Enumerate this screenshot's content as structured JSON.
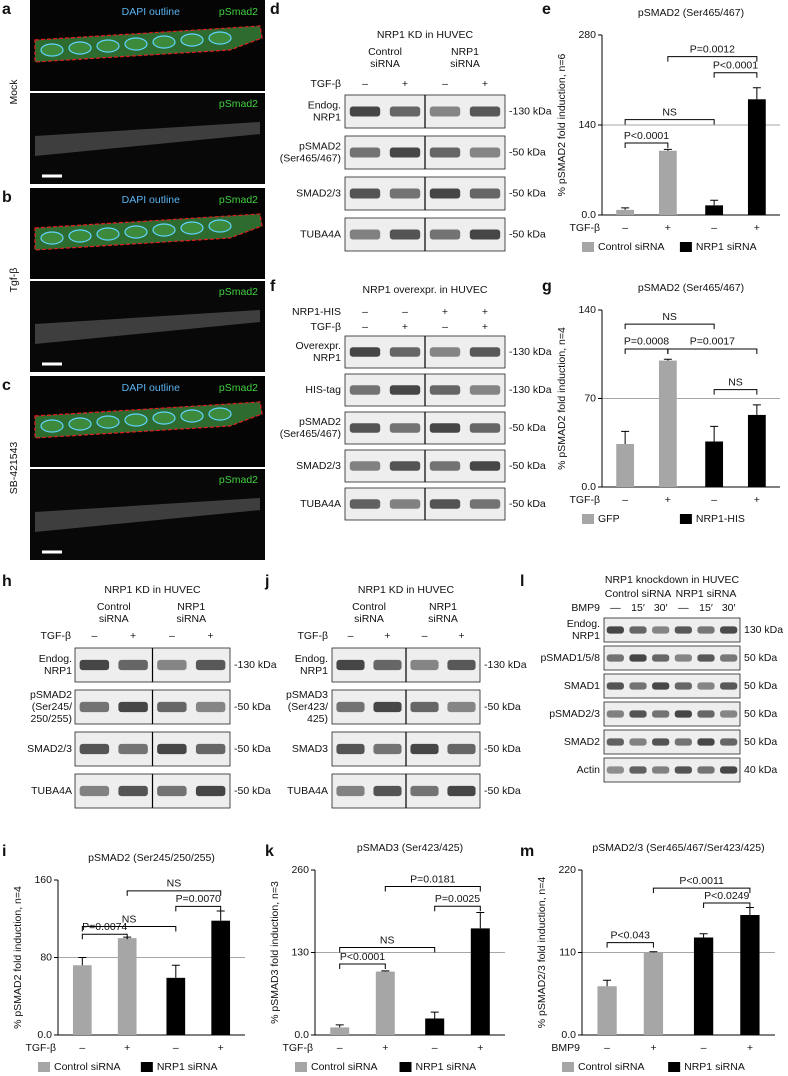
{
  "microscopy": [
    {
      "letter": "a",
      "condition": "Mock",
      "overlay_labels": [
        "DAPI outline",
        "pSmad2"
      ],
      "single_label": "pSmad2"
    },
    {
      "letter": "b",
      "condition": "Tgf-β",
      "overlay_labels": [
        "DAPI outline",
        "pSmad2"
      ],
      "single_label": "pSmad2"
    },
    {
      "letter": "c",
      "condition": "SB-421543",
      "overlay_labels": [
        "DAPI outline",
        "pSmad2"
      ],
      "single_label": "pSmad2"
    }
  ],
  "blots": [
    {
      "letter": "d",
      "title": "NRP1 KD in HUVEC",
      "groups": [
        [
          "Control",
          "siRNA"
        ],
        [
          "NRP1",
          "siRNA"
        ]
      ],
      "treatments": [
        {
          "label": "TGF-β",
          "signs": [
            "–",
            "+",
            "–",
            "+"
          ]
        }
      ],
      "rows": [
        {
          "label": [
            "Endog.",
            "NRP1"
          ],
          "size": "-130 kDa"
        },
        {
          "label": [
            "pSMAD2",
            "(Ser465/467)"
          ],
          "size": "-50 kDa"
        },
        {
          "label": [
            "SMAD2/3"
          ],
          "size": "-50 kDa"
        },
        {
          "label": [
            "TUBA4A"
          ],
          "size": "-50 kDa"
        }
      ]
    },
    {
      "letter": "f",
      "title": "NRP1 overexpr. in HUVEC",
      "groups": [],
      "treatments": [
        {
          "label": "NRP1-HIS",
          "signs": [
            "–",
            "–",
            "+",
            "+"
          ]
        },
        {
          "label": "TGF-β",
          "signs": [
            "–",
            "+",
            "–",
            "+"
          ]
        }
      ],
      "rows": [
        {
          "label": [
            "Overexpr.",
            "NRP1"
          ],
          "size": "-130 kDa"
        },
        {
          "label": [
            "HIS-tag"
          ],
          "size": "-130 kDa"
        },
        {
          "label": [
            "pSMAD2",
            "(Ser465/467)"
          ],
          "size": "-50 kDa"
        },
        {
          "label": [
            "SMAD2/3"
          ],
          "size": "-50 kDa"
        },
        {
          "label": [
            "TUBA4A"
          ],
          "size": "-50 kDa"
        }
      ]
    },
    {
      "letter": "h",
      "title": "NRP1 KD in HUVEC",
      "groups": [
        [
          "Control",
          "siRNA"
        ],
        [
          "NRP1",
          "siRNA"
        ]
      ],
      "treatments": [
        {
          "label": "TGF-β",
          "signs": [
            "–",
            "+",
            "–",
            "+"
          ]
        }
      ],
      "rows": [
        {
          "label": [
            "Endog.",
            "NRP1"
          ],
          "size": "-130 kDa"
        },
        {
          "label": [
            "pSMAD2",
            "(Ser245/",
            "250/255)"
          ],
          "size": "-50 kDa"
        },
        {
          "label": [
            "SMAD2/3"
          ],
          "size": "-50 kDa"
        },
        {
          "label": [
            "TUBA4A"
          ],
          "size": "-50 kDa"
        }
      ]
    },
    {
      "letter": "j",
      "title": "NRP1 KD in HUVEC",
      "groups": [
        [
          "Control",
          "siRNA"
        ],
        [
          "NRP1",
          "siRNA"
        ]
      ],
      "treatments": [
        {
          "label": "TGF-β",
          "signs": [
            "–",
            "+",
            "–",
            "+"
          ]
        }
      ],
      "rows": [
        {
          "label": [
            "Endog.",
            "NRP1"
          ],
          "size": "-130 kDa"
        },
        {
          "label": [
            "pSMAD3",
            "(Ser423/",
            "425)"
          ],
          "size": "-50 kDa"
        },
        {
          "label": [
            "SMAD3"
          ],
          "size": "-50 kDa"
        },
        {
          "label": [
            "TUBA4A"
          ],
          "size": "-50 kDa"
        }
      ]
    },
    {
      "letter": "l",
      "title": "NRP1 knockdown in HUVEC",
      "groups": [
        [
          "Control siRNA"
        ],
        [
          "NRP1 siRNA"
        ]
      ],
      "treatments": [
        {
          "label": "BMP9",
          "signs": [
            "—",
            "15′",
            "30′",
            "—",
            "15′",
            "30′"
          ]
        }
      ],
      "rows": [
        {
          "label": [
            "Endog.",
            "NRP1"
          ],
          "size": "130 kDa"
        },
        {
          "label": [
            "pSMAD1/5/8"
          ],
          "size": "50 kDa"
        },
        {
          "label": [
            "SMAD1"
          ],
          "size": "50 kDa"
        },
        {
          "label": [
            "pSMAD2/3"
          ],
          "size": "50 kDa"
        },
        {
          "label": [
            "SMAD2"
          ],
          "size": "50 kDa"
        },
        {
          "label": [
            "Actin"
          ],
          "size": "40 kDa"
        }
      ]
    }
  ],
  "chart_data": [
    {
      "type": "bar",
      "letter": "e",
      "title": "pSMAD2 (Ser465/467)",
      "ylabel": "% pSMAD2 fold induction, n=6",
      "x_label": "TGF-β",
      "categories": [
        "–",
        "+",
        "–",
        "+"
      ],
      "series": [
        {
          "name": "Control siRNA",
          "color": "#a6a6a6",
          "values": [
            8,
            100,
            null,
            null
          ],
          "errors": [
            3,
            2,
            null,
            null
          ]
        },
        {
          "name": "NRP1 siRNA",
          "color": "#000000",
          "values": [
            null,
            null,
            15,
            180
          ],
          "errors": [
            null,
            null,
            8,
            18
          ]
        }
      ],
      "ylim": [
        0,
        280
      ],
      "yticks": [
        {
          "value": 0,
          "label": "0.0"
        },
        140,
        280
      ],
      "reference_line": 140,
      "annotations": [
        "NS",
        "P<0.0001",
        "P=0.0012",
        "P<0.0001"
      ]
    },
    {
      "type": "bar",
      "letter": "g",
      "title": "pSMAD2 (Ser465/467)",
      "ylabel": "% pSMAD2 fold induction, n=4",
      "x_label": "TGF-β",
      "categories": [
        "–",
        "+",
        "–",
        "+"
      ],
      "series": [
        {
          "name": "GFP",
          "color": "#a6a6a6",
          "values": [
            34,
            100,
            null,
            null
          ],
          "errors": [
            10,
            1,
            null,
            null
          ]
        },
        {
          "name": "NRP1-HIS",
          "color": "#000000",
          "values": [
            null,
            null,
            36,
            57
          ],
          "errors": [
            null,
            null,
            12,
            8
          ]
        }
      ],
      "ylim": [
        0,
        140
      ],
      "yticks": [
        {
          "value": 0,
          "label": "0.0"
        },
        70,
        140
      ],
      "reference_line": 70,
      "annotations": [
        "NS",
        "P=0.0008",
        "P=0.0017",
        "NS"
      ]
    },
    {
      "type": "bar",
      "letter": "i",
      "title": "pSMAD2 (Ser245/250/255)",
      "ylabel": "% pSMAD2 fold induction, n=4",
      "x_label": "TGF-β",
      "categories": [
        "–",
        "+",
        "–",
        "+"
      ],
      "series": [
        {
          "name": "Control siRNA",
          "color": "#a6a6a6",
          "values": [
            72,
            100,
            null,
            null
          ],
          "errors": [
            8,
            1,
            null,
            null
          ]
        },
        {
          "name": "NRP1 siRNA",
          "color": "#000000",
          "values": [
            null,
            null,
            59,
            118
          ],
          "errors": [
            null,
            null,
            13,
            10
          ]
        }
      ],
      "ylim": [
        0,
        160
      ],
      "yticks": [
        {
          "value": 0,
          "label": "0.0"
        },
        80,
        160
      ],
      "reference_line": 80,
      "annotations": [
        "NS",
        "P=0.0074",
        "NS",
        "P=0.0070"
      ]
    },
    {
      "type": "bar",
      "letter": "k",
      "title": "pSMAD3 (Ser423/425)",
      "ylabel": "% pSMAD3 fold induction, n=3",
      "x_label": "TGF-β",
      "categories": [
        "–",
        "+",
        "–",
        "+"
      ],
      "series": [
        {
          "name": "Control siRNA",
          "color": "#a6a6a6",
          "values": [
            12,
            100,
            null,
            null
          ],
          "errors": [
            4,
            1,
            null,
            null
          ]
        },
        {
          "name": "NRP1 siRNA",
          "color": "#000000",
          "values": [
            null,
            null,
            26,
            168
          ],
          "errors": [
            null,
            null,
            10,
            25
          ]
        }
      ],
      "ylim": [
        0,
        260
      ],
      "yticks": [
        {
          "value": 0,
          "label": "0.0"
        },
        130,
        260
      ],
      "reference_line": 130,
      "annotations": [
        "NS",
        "P<0.0001",
        "P=0.0181",
        "P=0.0025"
      ]
    },
    {
      "type": "bar",
      "letter": "m",
      "title": "pSMAD2/3 (Ser465/467/Ser423/425)",
      "ylabel": "% pSMAD2/3 fold induction, n=4",
      "x_label": "BMP9",
      "categories": [
        "–",
        "+",
        "–",
        "+"
      ],
      "series": [
        {
          "name": "Control siRNA",
          "color": "#a6a6a6",
          "values": [
            65,
            110,
            null,
            null
          ],
          "errors": [
            8,
            1,
            null,
            null
          ]
        },
        {
          "name": "NRP1 siRNA",
          "color": "#000000",
          "values": [
            null,
            null,
            130,
            160
          ],
          "errors": [
            null,
            null,
            5,
            10
          ]
        }
      ],
      "ylim": [
        0,
        220
      ],
      "yticks": [
        {
          "value": 0,
          "label": "0.0"
        },
        110,
        220
      ],
      "reference_line": 110,
      "annotations": [
        "P<0.043",
        "P<0.0011",
        "P<0.0249"
      ]
    }
  ]
}
